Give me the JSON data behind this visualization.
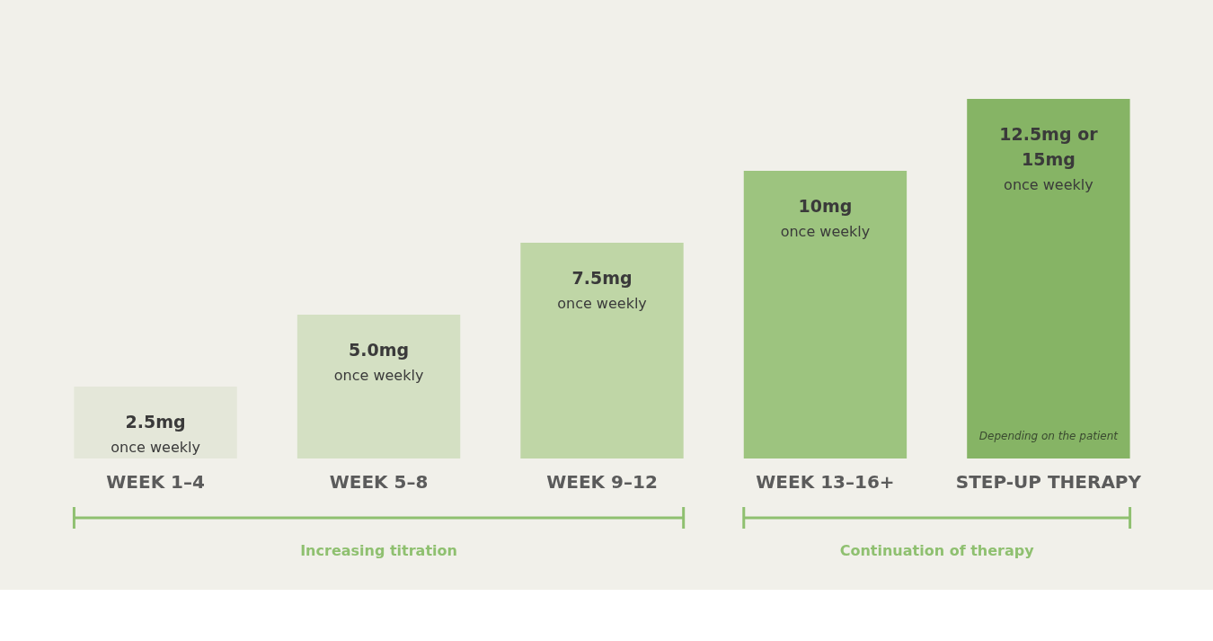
{
  "chart_data": {
    "type": "bar",
    "categories": [
      "WEEK 1–4",
      "WEEK 5–8",
      "WEEK 9–12",
      "WEEK 13–16+",
      "STEP-UP THERAPY"
    ],
    "values": [
      2.5,
      5.0,
      7.5,
      10,
      12.5
    ],
    "colors": [
      "#e4e7d9",
      "#d4e0c3",
      "#bfd6a6",
      "#9dc47f",
      "#86b465"
    ],
    "value_labels": [
      "2.5mg",
      "5.0mg",
      "7.5mg",
      "10mg",
      "12.5mg or"
    ],
    "annotations": [
      "once weekly",
      "once weekly",
      "once weekly",
      "once weekly",
      "once weekly",
      "15mg",
      "Depending on the patient",
      "Increasing titration",
      "Continuation of therapy"
    ],
    "tick_labels": "x",
    "grid": false
  }
}
